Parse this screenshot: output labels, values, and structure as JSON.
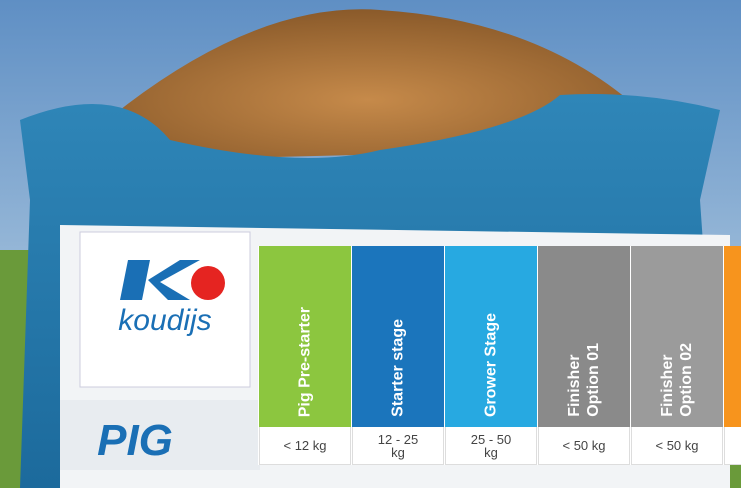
{
  "brand": {
    "logo_text": "koudijs",
    "product": "PIG"
  },
  "table": {
    "columns": [
      {
        "header_lines": [
          "Pig Pre-starter"
        ],
        "value": "< 12 kg",
        "color": "#8cc63f"
      },
      {
        "header_lines": [
          "Starter stage"
        ],
        "value": "12 - 25 kg",
        "color": "#1b75bc"
      },
      {
        "header_lines": [
          "Grower Stage"
        ],
        "value": "25 - 50 kg",
        "color": "#27a9e1"
      },
      {
        "header_lines": [
          "Finisher",
          "Option 01"
        ],
        "value": "< 50 kg",
        "color": "#8a8a8a"
      },
      {
        "header_lines": [
          "Finisher",
          "Option 02"
        ],
        "value": "< 50 kg",
        "color": "#9b9b9b"
      },
      {
        "header_lines": [],
        "color": "#f7941d"
      }
    ]
  }
}
